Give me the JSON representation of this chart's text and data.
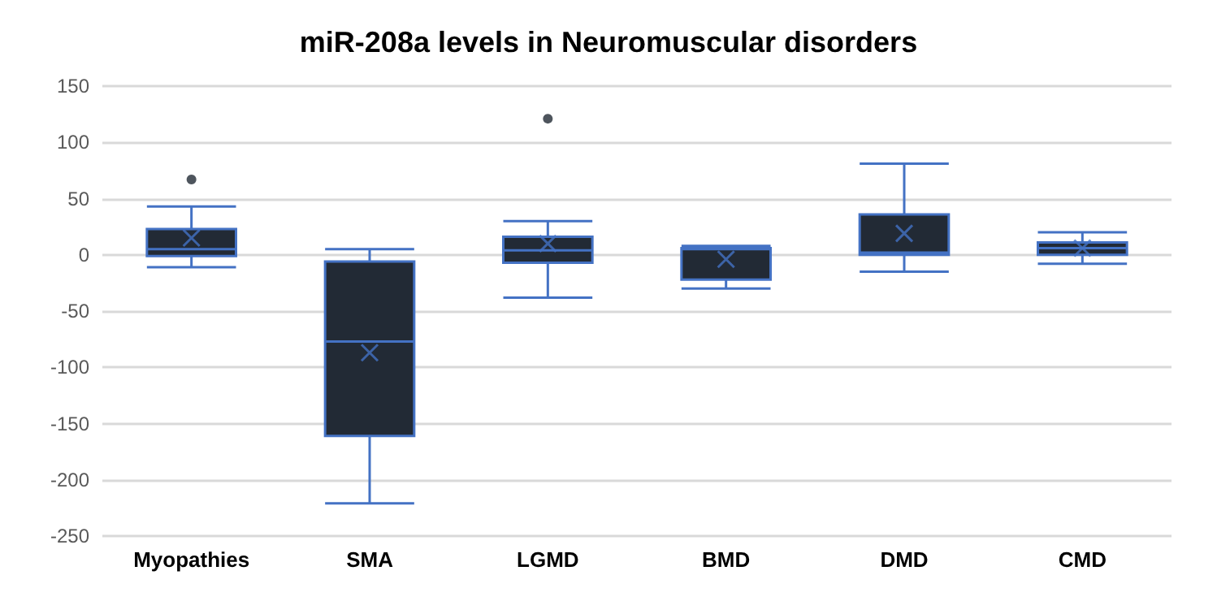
{
  "chart_data": {
    "type": "box",
    "title": "miR-208a levels in Neuromuscular disorders",
    "categories": [
      "Myopathies",
      "SMA",
      "LGMD",
      "BMD",
      "DMD",
      "CMD"
    ],
    "series": [
      {
        "color": "#222a35",
        "boxes": [
          {
            "low": -11,
            "q1": -1,
            "median": 5,
            "q3": 23,
            "high": 43,
            "mean": 15,
            "outliers": [
              67
            ]
          },
          {
            "low": -221,
            "q1": -161,
            "median": -77,
            "q3": -6,
            "high": 5,
            "mean": -87
          },
          {
            "low": -38,
            "q1": -7,
            "median": 4,
            "q3": 16,
            "high": 30,
            "mean": 10,
            "outliers": [
              121
            ]
          },
          {
            "low": -30,
            "q1": -22,
            "median": 5,
            "q3": 6,
            "high": 8,
            "mean": -4
          },
          {
            "low": -15,
            "q1": 0,
            "median": 2,
            "q3": 36,
            "high": 81,
            "mean": 19
          },
          {
            "low": -8,
            "q1": 0,
            "median": 6,
            "q3": 11,
            "high": 20,
            "mean": 6
          }
        ]
      }
    ],
    "ylim": [
      -250,
      150
    ],
    "yticks": [
      -250,
      -200,
      -150,
      -100,
      -50,
      0,
      50,
      100,
      150
    ],
    "grid": "y"
  }
}
